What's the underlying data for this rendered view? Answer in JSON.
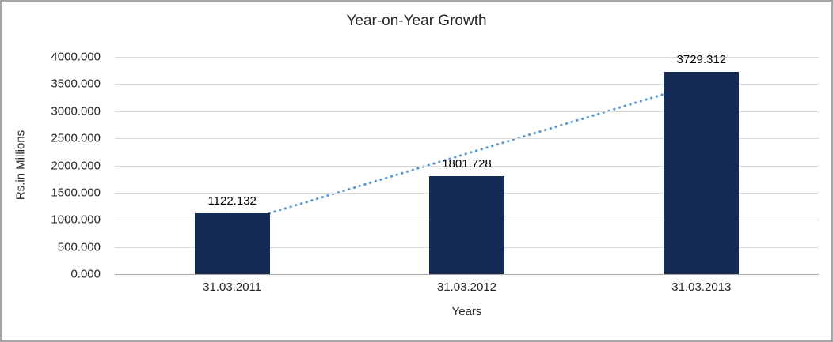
{
  "chart_data": {
    "type": "bar",
    "title": "Year-on-Year Growth",
    "xlabel": "Years",
    "ylabel": "Rs.in Millions",
    "categories": [
      "31.03.2011",
      "31.03.2012",
      "31.03.2013"
    ],
    "values": [
      1122.132,
      1801.728,
      3729.312
    ],
    "value_labels": [
      "1122.132",
      "1801.728",
      "3729.312"
    ],
    "ylim": [
      0,
      4000
    ],
    "ytick_step": 500,
    "ytick_labels": [
      "0.000",
      "500.000",
      "1000.000",
      "1500.000",
      "2000.000",
      "2500.000",
      "3000.000",
      "3500.000",
      "4000.000"
    ],
    "grid": true,
    "legend": "none",
    "bar_color": "#142b55",
    "trendline": {
      "type": "linear",
      "color": "#5b9bd5",
      "style": "dotted"
    }
  }
}
